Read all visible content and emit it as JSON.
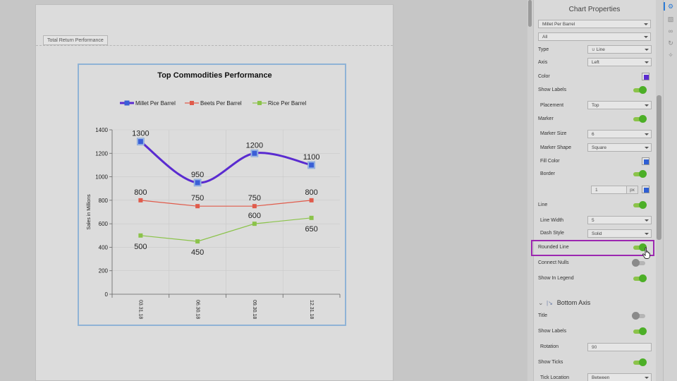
{
  "report": {
    "tab_label": "Total Return Performance"
  },
  "chart_data": {
    "type": "line",
    "title": "Top Commodities Performance",
    "ylabel": "Sales in Millions",
    "xlabel": "",
    "categories": [
      "03.31.18",
      "06.30.18",
      "09.30.18",
      "12.31.18"
    ],
    "ylim": [
      0,
      1400
    ],
    "yticks": [
      0,
      200,
      400,
      600,
      800,
      1000,
      1200,
      1400
    ],
    "grid": true,
    "legend_position": "top",
    "series": [
      {
        "name": "Millet Per Barrel",
        "values": [
          1300,
          950,
          1200,
          1100
        ],
        "color": "#5a2bd0",
        "marker_fill": "#3a5fd6",
        "rounded": true,
        "width": 3
      },
      {
        "name": "Beets Per Barrel",
        "values": [
          800,
          750,
          750,
          800
        ],
        "color": "#e05b4b",
        "marker_fill": "#e05b4b",
        "rounded": false,
        "width": 1.2
      },
      {
        "name": "Rice Per Barrel",
        "values": [
          500,
          450,
          600,
          650
        ],
        "color": "#8bc34a",
        "marker_fill": "#8bc34a",
        "rounded": false,
        "width": 1.2
      }
    ]
  },
  "panel": {
    "title": "Chart Properties",
    "series_select": "Millet Per Barrel",
    "filter_select": "All",
    "type_label": "Type",
    "type_value": "Line",
    "axis_label": "Axis",
    "axis_value": "Left",
    "color_label": "Color",
    "color_value": "#5a2bd0",
    "show_labels_label": "Show Labels",
    "placement_label": "Placement",
    "placement_value": "Top",
    "marker_label": "Marker",
    "marker_size_label": "Marker Size",
    "marker_size_value": "6",
    "marker_shape_label": "Marker Shape",
    "marker_shape_value": "Square",
    "fill_color_label": "Fill Color",
    "fill_color_value": "#2f5fd3",
    "border_label": "Border",
    "border_width_value": "1",
    "border_unit": "px",
    "border_color_value": "#2f5fd3",
    "line_label": "Line",
    "line_width_label": "Line Width",
    "line_width_value": "5",
    "dash_style_label": "Dash Style",
    "dash_style_value": "Solid",
    "rounded_line_label": "Rounded Line",
    "connect_nulls_label": "Connect Nulls",
    "show_in_legend_label": "Show In Legend",
    "bottom_axis_label": "Bottom Axis",
    "axis_title_label": "Title",
    "axis_show_labels_label": "Show Labels",
    "rotation_label": "Rotation",
    "rotation_value": "90",
    "show_ticks_label": "Show Ticks",
    "tick_location_label": "Tick Location",
    "tick_location_value": "Between"
  },
  "icons": {
    "settings": "gear-icon",
    "comment": "comment-icon",
    "attach": "paperclip-icon",
    "history": "history-icon",
    "magic": "wand-icon"
  }
}
